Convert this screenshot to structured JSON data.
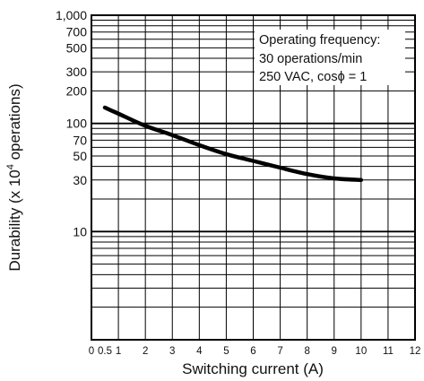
{
  "chart_data": {
    "type": "line",
    "xlabel": "Switching current (A)",
    "ylabel": {
      "prefix": "Durability  (x 10",
      "exponent": "4",
      "suffix": " operations)"
    },
    "x_ticks": [
      "0",
      "0.5",
      "1",
      "2",
      "3",
      "4",
      "5",
      "6",
      "7",
      "8",
      "9",
      "10",
      "11",
      "12"
    ],
    "x_tick_values": [
      0,
      0.5,
      1,
      2,
      3,
      4,
      5,
      6,
      7,
      8,
      9,
      10,
      11,
      12
    ],
    "y_ticks": [
      "1,000",
      "700",
      "500",
      "300",
      "200",
      "100",
      "70",
      "50",
      "30",
      "10"
    ],
    "y_tick_values": [
      1000,
      700,
      500,
      300,
      200,
      100,
      70,
      50,
      30,
      10
    ],
    "xlim": [
      0,
      12
    ],
    "ylim": [
      1,
      1000
    ],
    "yscale": "log",
    "grid": true,
    "annotation": [
      "Operating frequency:",
      "30 operations/min",
      "250 VAC, cosϕ = 1"
    ],
    "series": [
      {
        "x": [
          0.5,
          1,
          2,
          3,
          4,
          5,
          6,
          7,
          8,
          9,
          10
        ],
        "y": [
          140,
          123,
          95,
          78,
          63,
          52,
          45,
          39,
          34,
          31,
          30
        ]
      }
    ]
  }
}
